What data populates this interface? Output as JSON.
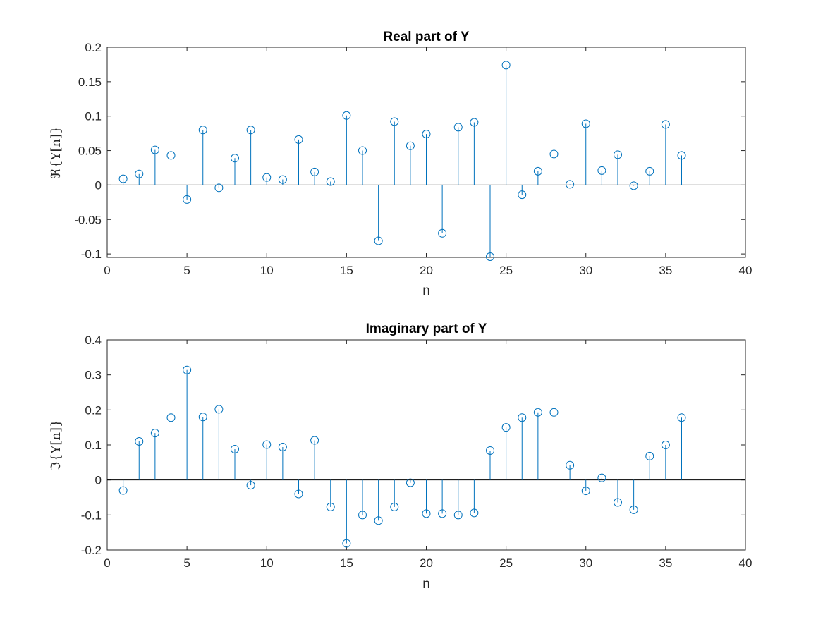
{
  "colors": {
    "stem": "#0072BD",
    "axis": "#262626",
    "background": "#ffffff"
  },
  "chart_data": [
    {
      "type": "stem",
      "title": "Real part of Y",
      "xlabel": "n",
      "ylabel": "ℜ{Y[n]}",
      "xlim": [
        0,
        40
      ],
      "ylim": [
        -0.105,
        0.2
      ],
      "xticks": [
        0,
        5,
        10,
        15,
        20,
        25,
        30,
        35,
        40
      ],
      "xtick_labels": [
        "0",
        "5",
        "10",
        "15",
        "20",
        "25",
        "30",
        "35",
        "40"
      ],
      "yticks": [
        -0.1,
        -0.05,
        0,
        0.05,
        0.1,
        0.15,
        0.2
      ],
      "ytick_labels": [
        "-0.1",
        "-0.05",
        "0",
        "0.05",
        "0.1",
        "0.15",
        "0.2"
      ],
      "grid": false,
      "x": [
        1,
        2,
        3,
        4,
        5,
        6,
        7,
        8,
        9,
        10,
        11,
        12,
        13,
        14,
        15,
        16,
        17,
        18,
        19,
        20,
        21,
        22,
        23,
        24,
        25,
        26,
        27,
        28,
        29,
        30,
        31,
        32,
        33,
        34,
        35,
        36
      ],
      "values": [
        0.009,
        0.016,
        0.051,
        0.043,
        -0.021,
        0.08,
        -0.004,
        0.039,
        0.08,
        0.011,
        0.008,
        0.066,
        0.019,
        0.005,
        0.101,
        0.05,
        -0.081,
        0.092,
        0.057,
        0.074,
        -0.07,
        0.084,
        0.091,
        -0.104,
        0.174,
        -0.014,
        0.02,
        0.045,
        0.001,
        0.089,
        0.021,
        0.044,
        -0.001,
        0.02,
        0.088,
        0.043
      ]
    },
    {
      "type": "stem",
      "title": "Imaginary part of Y",
      "xlabel": "n",
      "ylabel": "ℑ{Y[n]}",
      "xlim": [
        0,
        40
      ],
      "ylim": [
        -0.2,
        0.4
      ],
      "xticks": [
        0,
        5,
        10,
        15,
        20,
        25,
        30,
        35,
        40
      ],
      "xtick_labels": [
        "0",
        "5",
        "10",
        "15",
        "20",
        "25",
        "30",
        "35",
        "40"
      ],
      "yticks": [
        -0.2,
        -0.1,
        0,
        0.1,
        0.2,
        0.3,
        0.4
      ],
      "ytick_labels": [
        "-0.2",
        "-0.1",
        "0",
        "0.1",
        "0.2",
        "0.3",
        "0.4"
      ],
      "grid": false,
      "x": [
        1,
        2,
        3,
        4,
        5,
        6,
        7,
        8,
        9,
        10,
        11,
        12,
        13,
        14,
        15,
        16,
        17,
        18,
        19,
        20,
        21,
        22,
        23,
        24,
        25,
        26,
        27,
        28,
        29,
        30,
        31,
        32,
        33,
        34,
        35,
        36
      ],
      "values": [
        -0.03,
        0.11,
        0.134,
        0.178,
        0.314,
        0.18,
        0.202,
        0.088,
        -0.015,
        0.101,
        0.094,
        -0.04,
        0.113,
        -0.077,
        -0.181,
        -0.1,
        -0.116,
        -0.077,
        -0.008,
        -0.096,
        -0.096,
        -0.1,
        -0.094,
        0.084,
        0.15,
        0.178,
        0.193,
        0.193,
        0.042,
        -0.031,
        0.006,
        -0.064,
        -0.085,
        0.068,
        0.1,
        0.178
      ]
    }
  ]
}
